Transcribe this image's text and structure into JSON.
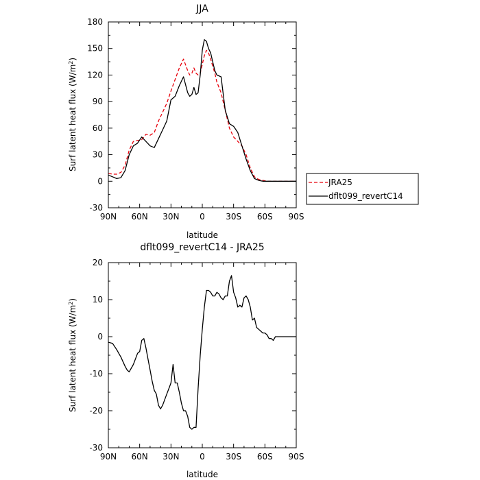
{
  "chart_data": [
    {
      "type": "line",
      "title": "JJA",
      "xlabel": "latitude",
      "ylabel": "Surf latent heat flux (W/m²)",
      "ylabel_main": "Surf latent heat flux (W/m",
      "ylabel_sup": "2",
      "ylabel_close": ")",
      "xlim": [
        90,
        -90
      ],
      "ylim": [
        -30,
        180
      ],
      "x_ticks": [
        90,
        60,
        30,
        0,
        -30,
        -60,
        -90
      ],
      "x_tick_labels": [
        "90N",
        "60N",
        "30N",
        "0",
        "30S",
        "60S",
        "90S"
      ],
      "y_ticks": [
        -30,
        0,
        30,
        60,
        90,
        120,
        150,
        180
      ],
      "y_tick_labels": [
        "-30",
        "0",
        "30",
        "60",
        "90",
        "120",
        "150",
        "180"
      ],
      "legend": {
        "placement": "right",
        "entries": [
          "JRA25",
          "dflt099_revertC14"
        ]
      },
      "series": [
        {
          "name": "JRA25",
          "color": "#e8000b",
          "dash": "dashed",
          "x": [
            90,
            86,
            82,
            78,
            74,
            70,
            66,
            62,
            58,
            54,
            50,
            46,
            42,
            38,
            34,
            30,
            26,
            22,
            18,
            14,
            12,
            10,
            8,
            6,
            4,
            2,
            0,
            -2,
            -4,
            -6,
            -8,
            -10,
            -12,
            -14,
            -18,
            -22,
            -26,
            -30,
            -34,
            -38,
            -42,
            -46,
            -50,
            -54,
            -58,
            -62,
            -66,
            -70,
            -74,
            -78,
            -82,
            -86,
            -90
          ],
          "y": [
            9,
            8,
            8,
            10,
            18,
            35,
            45,
            46,
            47,
            53,
            52,
            55,
            68,
            78,
            88,
            102,
            115,
            128,
            138,
            125,
            120,
            122,
            128,
            122,
            120,
            122,
            132,
            142,
            148,
            145,
            138,
            130,
            122,
            112,
            100,
            80,
            60,
            50,
            45,
            40,
            30,
            15,
            5,
            2,
            1,
            0,
            0,
            0,
            0,
            0,
            0,
            0,
            0
          ]
        },
        {
          "name": "dflt099_revertC14",
          "color": "#000000",
          "dash": "solid",
          "x": [
            90,
            86,
            82,
            78,
            74,
            70,
            66,
            62,
            58,
            54,
            50,
            46,
            42,
            38,
            34,
            30,
            26,
            22,
            18,
            14,
            12,
            10,
            8,
            6,
            4,
            2,
            0,
            -2,
            -4,
            -6,
            -8,
            -10,
            -12,
            -14,
            -18,
            -22,
            -26,
            -30,
            -34,
            -38,
            -42,
            -46,
            -50,
            -54,
            -58,
            -62,
            -66,
            -70,
            -74,
            -78,
            -82,
            -86,
            -90
          ],
          "y": [
            7,
            5,
            3,
            4,
            12,
            30,
            40,
            43,
            50,
            45,
            40,
            38,
            48,
            58,
            68,
            92,
            96,
            108,
            118,
            100,
            96,
            98,
            106,
            98,
            100,
            120,
            148,
            160,
            158,
            150,
            145,
            135,
            125,
            120,
            118,
            80,
            65,
            62,
            55,
            40,
            25,
            12,
            3,
            1,
            0,
            0,
            0,
            0,
            0,
            0,
            0,
            0,
            0
          ]
        }
      ],
      "grid": false
    },
    {
      "type": "line",
      "title": "dflt099_revertC14 - JRA25",
      "xlabel": "latitude",
      "ylabel": "Surf latent heat flux (W/m²)",
      "ylabel_main": "Surf latent heat flux (W/m",
      "ylabel_sup": "2",
      "ylabel_close": ")",
      "xlim": [
        90,
        -90
      ],
      "ylim": [
        -30,
        20
      ],
      "x_ticks": [
        90,
        60,
        30,
        0,
        -30,
        -60,
        -90
      ],
      "x_tick_labels": [
        "90N",
        "60N",
        "30N",
        "0",
        "30S",
        "60S",
        "90S"
      ],
      "y_ticks": [
        -30,
        -20,
        -10,
        0,
        10,
        20
      ],
      "y_tick_labels": [
        "-30",
        "-20",
        "-10",
        "0",
        "10",
        "20"
      ],
      "series": [
        {
          "color": "#000000",
          "dash": "solid",
          "x": [
            90,
            86,
            82,
            78,
            74,
            72,
            70,
            66,
            62,
            60,
            58,
            56,
            54,
            52,
            50,
            48,
            46,
            44,
            42,
            40,
            38,
            36,
            34,
            32,
            30,
            28,
            26,
            24,
            22,
            20,
            18,
            16,
            14,
            12,
            10,
            8,
            6,
            4,
            2,
            0,
            -2,
            -4,
            -6,
            -8,
            -10,
            -12,
            -14,
            -16,
            -18,
            -20,
            -22,
            -24,
            -26,
            -28,
            -30,
            -32,
            -34,
            -36,
            -38,
            -40,
            -42,
            -44,
            -46,
            -48,
            -50,
            -52,
            -54,
            -56,
            -58,
            -60,
            -62,
            -64,
            -66,
            -68,
            -70,
            -72,
            -74,
            -76,
            -78,
            -80,
            -82,
            -84,
            -86,
            -88,
            -90
          ],
          "y": [
            -1.5,
            -1.8,
            -3.5,
            -5.5,
            -8,
            -9,
            -9.5,
            -7.5,
            -4.5,
            -4,
            -1,
            -0.5,
            -3,
            -6,
            -9,
            -12,
            -14.5,
            -15.5,
            -18.5,
            -19.5,
            -18.5,
            -17,
            -15.5,
            -14,
            -12.5,
            -7.5,
            -12.5,
            -12.5,
            -15,
            -18,
            -20,
            -20,
            -21.5,
            -24.5,
            -25,
            -24.5,
            -24.5,
            -14,
            -5,
            2,
            8,
            12.5,
            12.5,
            12,
            11,
            11,
            12,
            11.5,
            10.5,
            10,
            11,
            11,
            15,
            16.5,
            12,
            10.5,
            8,
            8.5,
            8,
            10.5,
            11,
            10,
            8,
            4.5,
            5,
            2.5,
            2,
            1.5,
            1,
            1,
            0.5,
            -0.5,
            -0.5,
            -1,
            0,
            0,
            0,
            0,
            0,
            0,
            0,
            0,
            0,
            0,
            0
          ]
        }
      ],
      "grid": false
    }
  ]
}
